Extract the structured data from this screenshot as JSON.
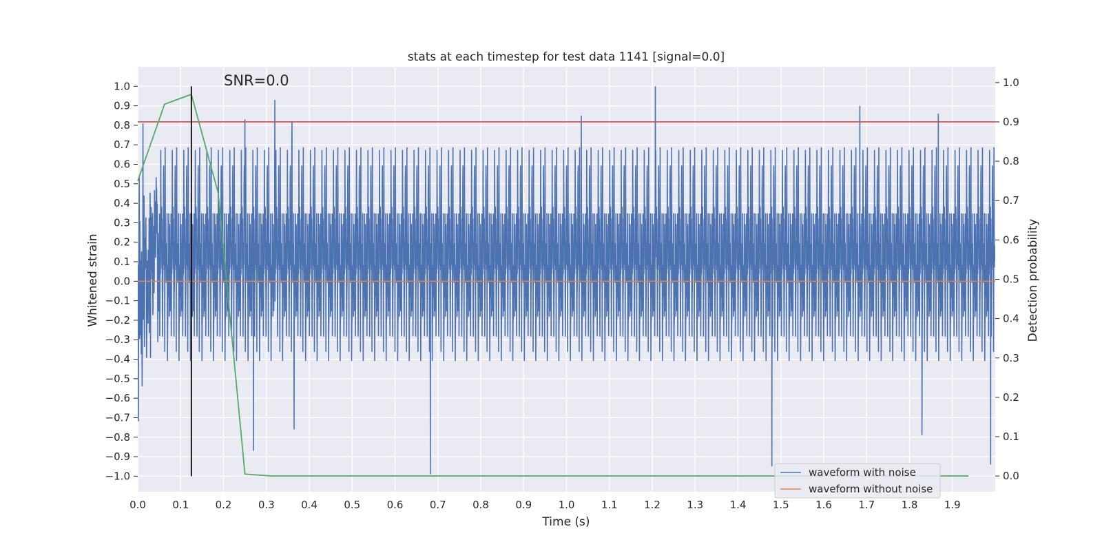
{
  "chart_data": {
    "type": "line",
    "title": "stats at each timestep for test data 1141 [signal=0.0]",
    "xlabel": "Time (s)",
    "ylabel": "Whitened strain",
    "y2label": "Detection probability",
    "xlim": [
      0.0,
      2.0
    ],
    "ylim": [
      -1.08,
      1.1
    ],
    "y2lim": [
      -0.04,
      1.04
    ],
    "xticks": [
      0.0,
      0.1,
      0.2,
      0.3,
      0.4,
      0.5,
      0.6,
      0.7,
      0.8,
      0.9,
      1.0,
      1.1,
      1.2,
      1.3,
      1.4,
      1.5,
      1.6,
      1.7,
      1.8,
      1.9
    ],
    "xtick_labels": [
      "0.0",
      "0.1",
      "0.2",
      "0.3",
      "0.4",
      "0.5",
      "0.6",
      "0.7",
      "0.8",
      "0.9",
      "1.0",
      "1.1",
      "1.2",
      "1.3",
      "1.4",
      "1.5",
      "1.6",
      "1.7",
      "1.8",
      "1.9"
    ],
    "yticks": [
      1.0,
      0.9,
      0.8,
      0.7,
      0.6,
      0.5,
      0.4,
      0.3,
      0.2,
      0.1,
      0.0,
      -0.1,
      -0.2,
      -0.3,
      -0.4,
      -0.5,
      -0.6,
      -0.7,
      -0.8,
      -0.9,
      -1.0
    ],
    "ytick_labels": [
      "1.0",
      "0.9",
      "0.8",
      "0.7",
      "0.6",
      "0.5",
      "0.4",
      "0.3",
      "0.2",
      "0.1",
      "0.0",
      "−0.1",
      "−0.2",
      "−0.3",
      "−0.4",
      "−0.5",
      "−0.6",
      "−0.7",
      "−0.8",
      "−0.9",
      "−1.0"
    ],
    "y2ticks": [
      1.0,
      0.9,
      0.8,
      0.7,
      0.6,
      0.5,
      0.4,
      0.3,
      0.2,
      0.1,
      0.0
    ],
    "y2tick_labels": [
      "1.0",
      "0.9",
      "0.8",
      "0.7",
      "0.6",
      "0.5",
      "0.4",
      "0.3",
      "0.2",
      "0.1",
      "0.0"
    ],
    "grid": true,
    "legend_position": "bottom-right",
    "annotation": "SNR=0.0",
    "series": [
      {
        "name": "waveform with noise",
        "color": "#4c72b0",
        "axis": "left",
        "note_values": "dense noise trace, 4096 samples, amplitude mostly within ±0.5 with peaks near ±1.0",
        "peaks": [
          {
            "x": 0.012,
            "y": 0.81
          },
          {
            "x": 0.32,
            "y": 0.93
          },
          {
            "x": 0.36,
            "y": 0.82
          },
          {
            "x": 0.25,
            "y": 0.83
          },
          {
            "x": 1.035,
            "y": 0.85
          },
          {
            "x": 1.208,
            "y": 1.0
          },
          {
            "x": 1.685,
            "y": 0.9
          },
          {
            "x": 1.868,
            "y": 0.86
          },
          {
            "x": 0.683,
            "y": -0.99
          },
          {
            "x": 1.48,
            "y": -0.95
          },
          {
            "x": 0.27,
            "y": -0.87
          },
          {
            "x": 0.365,
            "y": -0.76
          },
          {
            "x": 1.99,
            "y": -0.94
          },
          {
            "x": 1.83,
            "y": -0.79
          }
        ]
      },
      {
        "name": "waveform without noise",
        "color": "#dd8452",
        "axis": "left",
        "x": [
          0.0,
          2.0
        ],
        "y": [
          0.0,
          0.0
        ]
      },
      {
        "name": "",
        "color": "#55a868",
        "axis": "right",
        "x": [
          0.0,
          0.0625,
          0.125,
          0.1875,
          0.25,
          0.3125,
          0.375,
          0.4375,
          0.5,
          0.5625,
          0.625,
          0.6875,
          0.75,
          0.8125,
          0.875,
          0.9375,
          1.0,
          1.0625,
          1.125,
          1.1875,
          1.25,
          1.3125,
          1.375,
          1.4375,
          1.5,
          1.5625,
          1.625,
          1.6875,
          1.75,
          1.8125,
          1.875,
          1.9375
        ],
        "y": [
          0.75,
          0.945,
          0.97,
          0.72,
          0.005,
          0.0,
          0.0,
          0.0,
          0.0,
          0.0,
          0.0,
          0.0,
          0.0,
          0.0,
          0.0,
          0.0,
          0.0,
          0.0,
          0.0,
          0.0,
          0.0,
          0.0,
          0.0,
          0.0,
          0.0,
          0.0,
          0.0,
          0.0,
          0.0,
          0.0,
          0.0,
          0.0
        ]
      }
    ],
    "threshold": {
      "axis": "right",
      "value": 0.9,
      "color": "#c44e52"
    },
    "marker_line": {
      "x": 0.125,
      "y_from": -1.0,
      "y_to": 1.0,
      "color": "#000000"
    }
  }
}
